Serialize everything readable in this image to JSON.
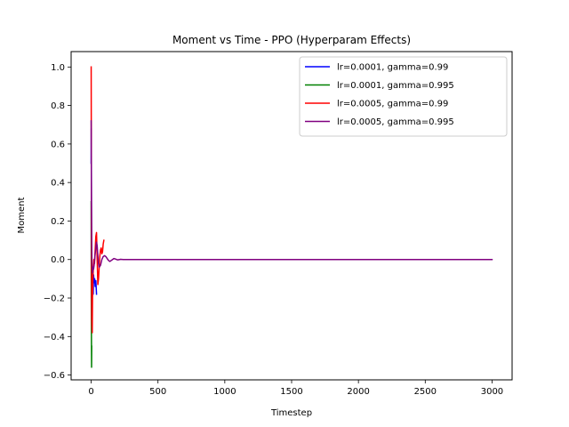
{
  "chart_data": {
    "type": "line",
    "title": "Moment vs Time - PPO (Hyperparam Effects)",
    "xlabel": "Timestep",
    "ylabel": "Moment",
    "xlim": [
      -150,
      3150
    ],
    "ylim": [
      -0.625,
      1.08
    ],
    "xticks": [
      0,
      500,
      1000,
      1500,
      2000,
      2500,
      3000
    ],
    "yticks": [
      -0.6,
      -0.4,
      -0.2,
      0.0,
      0.2,
      0.4,
      0.6,
      0.8,
      1.0
    ],
    "ytick_labels": [
      "−0.6",
      "−0.4",
      "−0.2",
      "0.0",
      "0.2",
      "0.4",
      "0.6",
      "0.8",
      "1.0"
    ],
    "grid": false,
    "legend_position": "top-right",
    "series": [
      {
        "name": "lr=0.0001, gamma=0.99",
        "color": "#0000ff",
        "x": [
          0,
          1,
          2,
          3,
          5,
          7,
          9,
          12,
          15,
          18,
          22,
          26,
          30,
          35,
          40
        ],
        "y": [
          0.5,
          0.68,
          0.3,
          -0.1,
          -0.3,
          -0.18,
          -0.05,
          -0.1,
          -0.18,
          -0.08,
          -0.12,
          -0.1,
          -0.14,
          -0.11,
          -0.18
        ]
      },
      {
        "name": "lr=0.0001, gamma=0.995",
        "color": "#008000",
        "x": [
          0,
          1,
          2,
          3,
          4
        ],
        "y": [
          0.3,
          -0.2,
          -0.4,
          -0.56,
          -0.45
        ]
      },
      {
        "name": "lr=0.0005, gamma=0.99",
        "color": "#ff0000",
        "x": [
          0,
          1,
          2,
          4,
          6,
          8,
          10,
          13,
          16,
          20,
          25,
          30,
          35,
          40,
          45,
          50,
          55,
          60,
          65,
          70,
          75,
          80,
          85,
          90,
          95
        ],
        "y": [
          1.0,
          0.6,
          0.1,
          -0.3,
          -0.35,
          -0.38,
          -0.2,
          -0.1,
          -0.05,
          0.0,
          -0.02,
          0.05,
          0.12,
          0.14,
          0.0,
          -0.13,
          -0.1,
          -0.04,
          0.02,
          0.05,
          0.06,
          0.03,
          0.04,
          0.08,
          0.1
        ]
      },
      {
        "name": "lr=0.0005, gamma=0.995",
        "color": "#800080",
        "x": [
          0,
          1,
          2,
          3,
          4,
          6,
          8,
          10,
          12,
          15,
          18,
          22,
          26,
          30,
          35,
          40,
          45,
          50,
          55,
          60,
          70,
          80,
          90,
          100,
          110,
          120,
          130,
          140,
          150,
          160,
          170,
          180,
          190,
          200,
          220,
          240,
          260,
          280,
          300,
          400,
          600,
          1000,
          1500,
          2000,
          2500,
          3000
        ],
        "y": [
          0.72,
          0.55,
          0.3,
          0.2,
          0.1,
          -0.02,
          -0.05,
          -0.07,
          -0.06,
          -0.04,
          -0.05,
          -0.03,
          0.0,
          0.03,
          0.06,
          0.09,
          0.07,
          0.02,
          -0.02,
          -0.04,
          -0.03,
          0.0,
          0.015,
          0.02,
          0.015,
          0.005,
          -0.005,
          -0.01,
          -0.005,
          0.0,
          0.005,
          0.003,
          0.0,
          -0.002,
          0.001,
          0.0,
          0.0,
          0.0,
          0.0,
          0.0,
          0.0,
          0.0,
          0.0,
          0.0,
          0.0,
          0.0
        ]
      }
    ]
  }
}
